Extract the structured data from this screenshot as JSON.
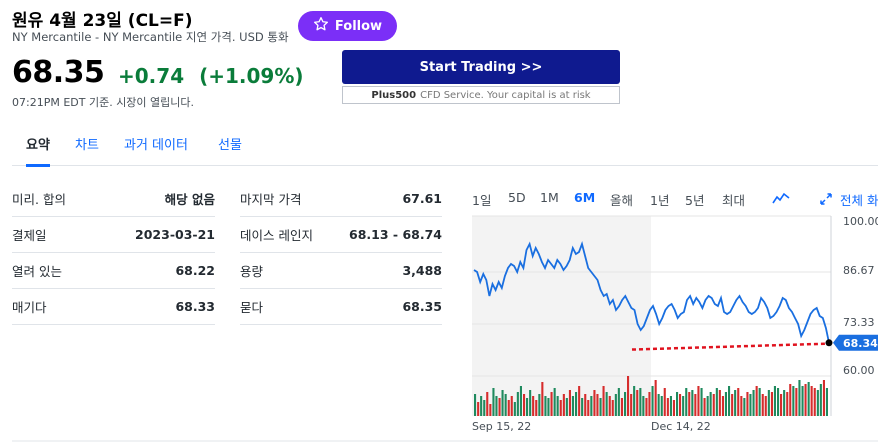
{
  "header": {
    "title": "원유 4월 23일 (CL=F)",
    "subtitle": "NY Mercantile - NY Mercantile 지연 가격. USD 통화",
    "follow_label": "Follow",
    "price": "68.35",
    "change": "+0.74",
    "change_pct": "(+1.09%)",
    "market_time": "07:21PM EDT 기준. 시장이 열립니다.",
    "colors": {
      "up": "#0a7c3a",
      "accent": "#7b2ff7",
      "link": "#0f69ff"
    }
  },
  "promo": {
    "button_label": "Start Trading >>",
    "note_brand": "Plus500",
    "note_text": "CFD Service. Your capital is at risk"
  },
  "tabs": [
    {
      "label": "요약"
    },
    {
      "label": "차트"
    },
    {
      "label": "과거 데이터"
    },
    {
      "label": "선물"
    }
  ],
  "stats_left": [
    {
      "label": "미리. 합의",
      "value": "해당 없음"
    },
    {
      "label": "결제일",
      "value": "2023-03-21"
    },
    {
      "label": "열려 있는",
      "value": "68.22"
    },
    {
      "label": "매기다",
      "value": "68.33"
    }
  ],
  "stats_right": [
    {
      "label": "마지막 가격",
      "value": "67.61"
    },
    {
      "label": "데이스 레인지",
      "value": "68.13 - 68.74"
    },
    {
      "label": "용량",
      "value": "3,488"
    },
    {
      "label": "묻다",
      "value": "68.35"
    }
  ],
  "range_buttons": [
    "1일",
    "5D",
    "1M",
    "6M",
    "올해",
    "1년",
    "5년",
    "최대"
  ],
  "selected_range": "6M",
  "fullscreen_label": "전체 화",
  "icons": {
    "follow": "star-icon",
    "chart_type": "line-chart-icon",
    "fullscreen": "expand-icon"
  },
  "chart_data": {
    "type": "line",
    "y_ticks": [
      "100.00",
      "86.67",
      "73.33",
      "60.00"
    ],
    "ylim": [
      54,
      100
    ],
    "x_tick_labels": [
      "Sep 15, 22",
      "Dec 14, 22"
    ],
    "current_value_label": "68.34",
    "previous_close": 67.61,
    "line_color": "#1a6fe0",
    "series": [
      {
        "values": [
          86.5,
          86.0,
          83.5,
          85.5,
          84.0,
          80.0,
          83.0,
          81.5,
          83.5,
          82.0,
          85.0,
          87.0,
          88.0,
          87.5,
          86.0,
          88.5,
          87.0,
          91.5,
          93.0,
          90.0,
          92.0,
          90.5,
          88.5,
          87.0,
          89.0,
          88.0,
          87.0,
          89.0,
          88.0,
          86.5,
          87.5,
          89.0,
          92.0,
          90.5,
          91.0,
          93.0,
          90.0,
          87.0,
          86.0,
          85.0,
          84.0,
          81.5,
          80.0,
          80.5,
          78.0,
          79.0,
          76.5,
          77.5,
          79.0,
          80.0,
          78.5,
          77.0,
          76.5,
          73.0,
          71.5,
          72.5,
          74.5,
          76.5,
          77.5,
          75.5,
          73.0,
          74.5,
          76.5,
          77.5,
          78.0,
          76.5,
          74.5,
          75.5,
          76.0,
          79.0,
          80.0,
          78.0,
          79.5,
          78.5,
          77.0,
          79.0,
          80.0,
          79.5,
          78.0,
          77.5,
          79.5,
          76.0,
          75.5,
          76.0,
          77.5,
          79.0,
          80.0,
          78.5,
          77.5,
          76.0,
          75.5,
          76.0,
          77.0,
          79.5,
          78.5,
          77.0,
          74.5,
          75.0,
          76.0,
          77.5,
          79.5,
          79.0,
          77.0,
          76.0,
          74.5,
          73.0,
          70.0,
          71.5,
          73.5,
          75.5,
          76.5,
          77.0,
          75.0,
          74.5,
          72.0,
          68.3
        ]
      }
    ],
    "volume": [
      22,
      14,
      20,
      16,
      24,
      12,
      28,
      20,
      18,
      26,
      22,
      16,
      20,
      14,
      24,
      30,
      22,
      18,
      26,
      20,
      16,
      22,
      34,
      20,
      18,
      24,
      28,
      20,
      16,
      22,
      18,
      26,
      20,
      24,
      30,
      18,
      22,
      16,
      20,
      26,
      22,
      18,
      30,
      24,
      20,
      16,
      22,
      28,
      18,
      24,
      40,
      22,
      30,
      26,
      28,
      20,
      18,
      24,
      30,
      36,
      22,
      20,
      28,
      18,
      20,
      16,
      24,
      22,
      20,
      28,
      24,
      26,
      22,
      30,
      28,
      18,
      20,
      24,
      22,
      28,
      26,
      20,
      24,
      30,
      22,
      26,
      28,
      20,
      18,
      24,
      22,
      26,
      30,
      28,
      22,
      20,
      26,
      24,
      30,
      28,
      22,
      26,
      24,
      32,
      30,
      28,
      36,
      30,
      32,
      34,
      30,
      28,
      26,
      32,
      36,
      28
    ],
    "volume_up": [
      1,
      0,
      1,
      1,
      0,
      0,
      1,
      1,
      0,
      1,
      1,
      0,
      0,
      1,
      1,
      1,
      0,
      1,
      1,
      0,
      0,
      1,
      0,
      1,
      1,
      0,
      1,
      1,
      0,
      0,
      1,
      0,
      1,
      1,
      0,
      1,
      0,
      0,
      1,
      0,
      0,
      1,
      0,
      1,
      0,
      0,
      1,
      1,
      0,
      1,
      0,
      0,
      1,
      0,
      1,
      1,
      0,
      0,
      1,
      0,
      1,
      1,
      0,
      0,
      1,
      0,
      1,
      0,
      1,
      1,
      0,
      1,
      0,
      0,
      1,
      0,
      1,
      1,
      0,
      1,
      0,
      0,
      1,
      1,
      0,
      1,
      0,
      0,
      1,
      0,
      1,
      1,
      0,
      1,
      0,
      0,
      1,
      0,
      1,
      1,
      0,
      1,
      0,
      0,
      1,
      0,
      1,
      1,
      0,
      1,
      0,
      0,
      1,
      1,
      0,
      1
    ]
  }
}
